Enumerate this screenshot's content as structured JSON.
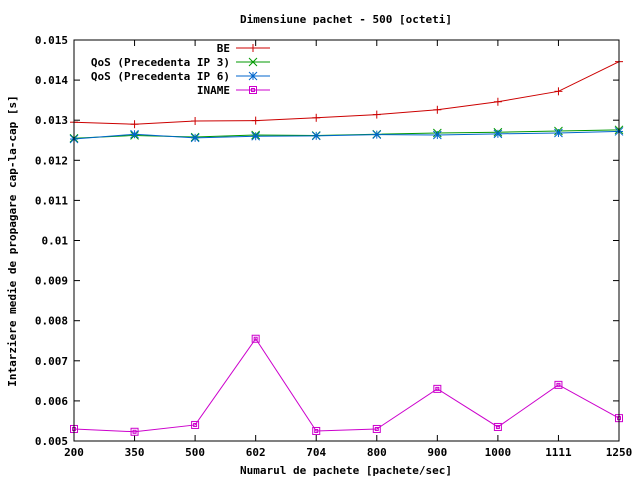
{
  "chart_data": {
    "type": "line",
    "title": "Dimensiune pachet - 500 [octeti]",
    "xlabel": "Numarul de pachete [pachete/sec]",
    "ylabel": "Intarziere medie de propagare cap-la-cap [s]",
    "categories": [
      "200",
      "350",
      "500",
      "602",
      "704",
      "800",
      "900",
      "1000",
      "1111",
      "1250"
    ],
    "y_ticks": [
      "0.005",
      "0.006",
      "0.007",
      "0.008",
      "0.009",
      "0.01",
      "0.011",
      "0.012",
      "0.013",
      "0.014",
      "0.015"
    ],
    "ylim": [
      0.005,
      0.015
    ],
    "grid": false,
    "legend_position": "top-right",
    "series": [
      {
        "name": "BE",
        "color": "#cc0000",
        "marker": "plus",
        "values": [
          0.01295,
          0.0129,
          0.01298,
          0.01299,
          0.01306,
          0.01314,
          0.01326,
          0.01346,
          0.01372,
          0.01446
        ]
      },
      {
        "name": "QoS (Precedenta IP 3)",
        "color": "#009900",
        "marker": "x",
        "values": [
          0.01255,
          0.01262,
          0.01258,
          0.01263,
          0.01262,
          0.01265,
          0.01268,
          0.0127,
          0.01273,
          0.01276
        ]
      },
      {
        "name": "QoS (Precedenta IP 6)",
        "color": "#0066cc",
        "marker": "star",
        "values": [
          0.01253,
          0.01265,
          0.01256,
          0.0126,
          0.01261,
          0.01264,
          0.01263,
          0.01266,
          0.01268,
          0.01272
        ]
      },
      {
        "name": "INAME",
        "color": "#cc00cc",
        "marker": "square",
        "values": [
          0.0053,
          0.00523,
          0.0054,
          0.00755,
          0.00525,
          0.0053,
          0.0063,
          0.00535,
          0.0064,
          0.00557
        ]
      }
    ]
  }
}
